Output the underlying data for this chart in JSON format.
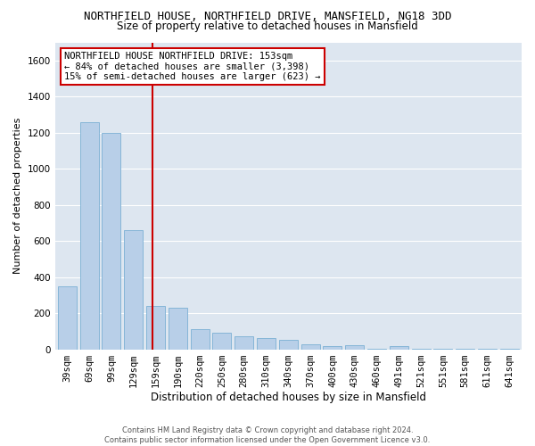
{
  "title": "NORTHFIELD HOUSE, NORTHFIELD DRIVE, MANSFIELD, NG18 3DD",
  "subtitle": "Size of property relative to detached houses in Mansfield",
  "xlabel": "Distribution of detached houses by size in Mansfield",
  "ylabel": "Number of detached properties",
  "categories": [
    "39sqm",
    "69sqm",
    "99sqm",
    "129sqm",
    "159sqm",
    "190sqm",
    "220sqm",
    "250sqm",
    "280sqm",
    "310sqm",
    "340sqm",
    "370sqm",
    "400sqm",
    "430sqm",
    "460sqm",
    "491sqm",
    "521sqm",
    "551sqm",
    "581sqm",
    "611sqm",
    "641sqm"
  ],
  "values": [
    350,
    1260,
    1200,
    660,
    240,
    230,
    110,
    90,
    70,
    62,
    50,
    30,
    20,
    25,
    5,
    18,
    2,
    2,
    2,
    2,
    2
  ],
  "bar_color": "#b8cfe8",
  "bar_edge_color": "#7aafd4",
  "vline_color": "#cc0000",
  "annotation_text": "NORTHFIELD HOUSE NORTHFIELD DRIVE: 153sqm\n← 84% of detached houses are smaller (3,398)\n15% of semi-detached houses are larger (623) →",
  "annotation_box_color": "#ffffff",
  "annotation_box_edge": "#cc0000",
  "ylim_max": 1700,
  "yticks": [
    0,
    200,
    400,
    600,
    800,
    1000,
    1200,
    1400,
    1600
  ],
  "bg_color": "#dde6f0",
  "grid_color": "#ffffff",
  "footer_text": "Contains HM Land Registry data © Crown copyright and database right 2024.\nContains public sector information licensed under the Open Government Licence v3.0.",
  "title_fontsize": 9,
  "subtitle_fontsize": 8.5,
  "xlabel_fontsize": 8.5,
  "ylabel_fontsize": 8,
  "tick_fontsize": 7.5,
  "annot_fontsize": 7.5,
  "footer_fontsize": 6
}
